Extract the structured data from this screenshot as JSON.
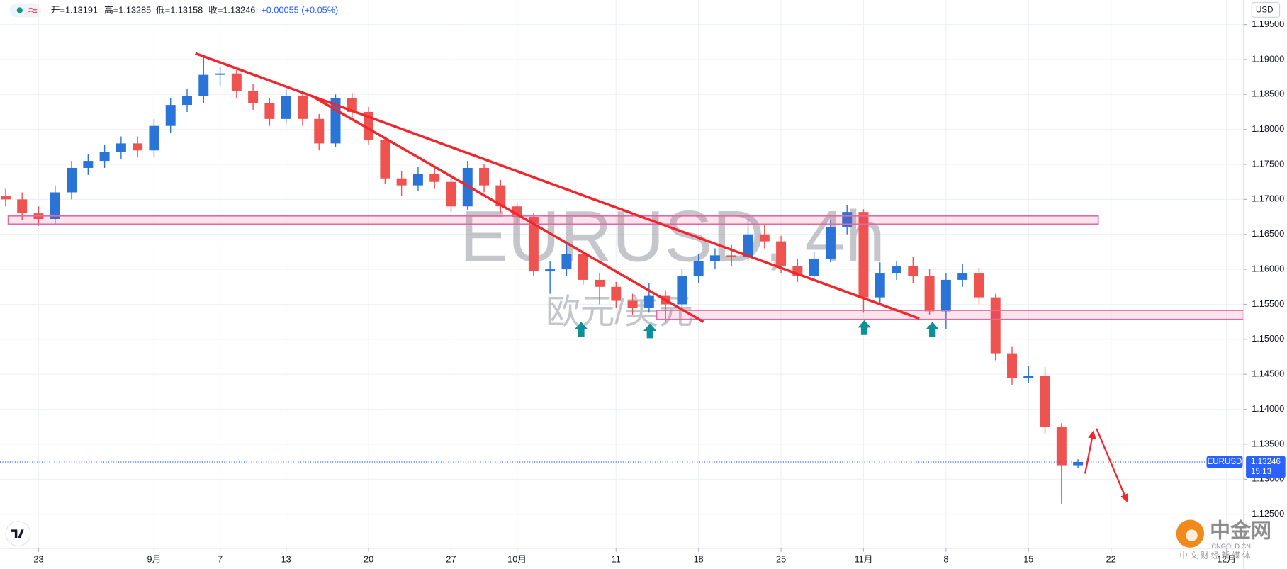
{
  "chart_data": {
    "type": "candlestick",
    "symbol_menu": "USD",
    "ohlc_legend": [
      "开=1.13191",
      "高=1.13285",
      "低=1.13158",
      "收=1.13246",
      "+0.00055 (+0.05%)"
    ],
    "watermark": [
      "EURUSD, 4h",
      "欧元/美元"
    ],
    "logo": {
      "name": "中金网",
      "domain": "CNGOLD.CN",
      "tagline": "中 文 财 经 新 媒 体"
    },
    "last_price": {
      "symbol": "EURUSD",
      "value": 1.13246,
      "countdown": "15:13"
    },
    "up_color": "#2a74d8",
    "down_color": "#ef5350",
    "grid": true,
    "xlim": [
      -2.34,
      73.03
    ],
    "xticks": [
      {
        "value": 0,
        "label": "23"
      },
      {
        "value": 7,
        "label": "9月"
      },
      {
        "value": 11,
        "label": "7"
      },
      {
        "value": 15,
        "label": "13"
      },
      {
        "value": 20,
        "label": "20"
      },
      {
        "value": 25,
        "label": "27"
      },
      {
        "value": 29,
        "label": "10月"
      },
      {
        "value": 35,
        "label": "11"
      },
      {
        "value": 40,
        "label": "18"
      },
      {
        "value": 45,
        "label": "25"
      },
      {
        "value": 50,
        "label": "11月"
      },
      {
        "value": 55,
        "label": "8"
      },
      {
        "value": 60,
        "label": "15"
      },
      {
        "value": 65,
        "label": "22"
      },
      {
        "value": 72,
        "label": "12月"
      }
    ],
    "ylim": [
      1.1201,
      1.1985
    ],
    "yticks": [
      {
        "value": 1.125,
        "label": "1.12500"
      },
      {
        "value": 1.13,
        "label": "1.13000"
      },
      {
        "value": 1.135,
        "label": "1.13500"
      },
      {
        "value": 1.14,
        "label": "1.14000"
      },
      {
        "value": 1.145,
        "label": "1.14500"
      },
      {
        "value": 1.15,
        "label": "1.15000"
      },
      {
        "value": 1.155,
        "label": "1.15500"
      },
      {
        "value": 1.16,
        "label": "1.16000"
      },
      {
        "value": 1.165,
        "label": "1.16500"
      },
      {
        "value": 1.17,
        "label": "1.17000"
      },
      {
        "value": 1.175,
        "label": "1.17500"
      },
      {
        "value": 1.18,
        "label": "1.18000"
      },
      {
        "value": 1.185,
        "label": "1.18500"
      },
      {
        "value": 1.19,
        "label": "1.19000"
      },
      {
        "value": 1.195,
        "label": "1.19500"
      }
    ],
    "x": [
      -2,
      -1,
      0,
      1,
      2,
      3,
      4,
      5,
      6,
      7,
      8,
      9,
      10,
      11,
      12,
      13,
      14,
      15,
      16,
      17,
      18,
      19,
      20,
      21,
      22,
      23,
      24,
      25,
      26,
      27,
      28,
      29,
      30,
      31,
      32,
      33,
      34,
      35,
      36,
      37,
      38,
      39,
      40,
      41,
      42,
      43,
      44,
      45,
      46,
      47,
      48,
      49,
      50,
      51,
      52,
      53,
      54,
      55,
      56,
      57,
      58,
      59,
      60,
      61,
      62,
      63
    ],
    "open": [
      1.1705,
      1.17,
      1.168,
      1.1672,
      1.171,
      1.1745,
      1.1755,
      1.1768,
      1.178,
      1.177,
      1.1805,
      1.1835,
      1.1848,
      1.1878,
      1.188,
      1.1855,
      1.1838,
      1.1815,
      1.1848,
      1.1815,
      1.178,
      1.1845,
      1.1825,
      1.1785,
      1.173,
      1.172,
      1.1736,
      1.1725,
      1.169,
      1.1745,
      1.172,
      1.169,
      1.1675,
      1.1597,
      1.16,
      1.1622,
      1.1585,
      1.1575,
      1.1555,
      1.1545,
      1.1562,
      1.155,
      1.159,
      1.1612,
      1.162,
      1.1618,
      1.165,
      1.164,
      1.1605,
      1.159,
      1.1615,
      1.166,
      1.1682,
      1.156,
      1.1595,
      1.1605,
      1.159,
      1.154,
      1.1585,
      1.1595,
      1.156,
      1.148,
      1.1445,
      1.1448,
      1.1375,
      1.132
    ],
    "high": [
      1.1715,
      1.171,
      1.169,
      1.172,
      1.1755,
      1.1765,
      1.1778,
      1.179,
      1.179,
      1.1815,
      1.1845,
      1.1858,
      1.1905,
      1.189,
      1.1885,
      1.1865,
      1.1845,
      1.1858,
      1.1852,
      1.1822,
      1.185,
      1.1852,
      1.1832,
      1.179,
      1.174,
      1.1746,
      1.1745,
      1.1732,
      1.1755,
      1.175,
      1.1728,
      1.1695,
      1.168,
      1.1612,
      1.164,
      1.1628,
      1.1595,
      1.1582,
      1.1565,
      1.158,
      1.157,
      1.16,
      1.1622,
      1.163,
      1.1635,
      1.1672,
      1.1665,
      1.1648,
      1.1615,
      1.1625,
      1.167,
      1.1692,
      1.1686,
      1.161,
      1.1612,
      1.1618,
      1.16,
      1.1595,
      1.1608,
      1.1602,
      1.1565,
      1.149,
      1.1462,
      1.146,
      1.138,
      1.13285
    ],
    "low": [
      1.169,
      1.167,
      1.1662,
      1.1665,
      1.17,
      1.1735,
      1.1745,
      1.1758,
      1.176,
      1.176,
      1.1795,
      1.1825,
      1.1838,
      1.1862,
      1.1845,
      1.1828,
      1.1805,
      1.1808,
      1.1805,
      1.177,
      1.1775,
      1.1815,
      1.1778,
      1.1722,
      1.1705,
      1.1712,
      1.1715,
      1.1682,
      1.1685,
      1.171,
      1.168,
      1.1665,
      1.159,
      1.1565,
      1.159,
      1.1578,
      1.155,
      1.1545,
      1.1535,
      1.1538,
      1.1525,
      1.1545,
      1.158,
      1.16,
      1.1605,
      1.1612,
      1.163,
      1.1595,
      1.1582,
      1.1585,
      1.161,
      1.165,
      1.1538,
      1.1552,
      1.1585,
      1.158,
      1.1535,
      1.1515,
      1.1575,
      1.155,
      1.147,
      1.1435,
      1.1438,
      1.1365,
      1.1265,
      1.13158
    ],
    "close": [
      1.17,
      1.168,
      1.1672,
      1.171,
      1.1745,
      1.1755,
      1.1768,
      1.178,
      1.177,
      1.1805,
      1.1835,
      1.1848,
      1.1878,
      1.188,
      1.1855,
      1.1838,
      1.1815,
      1.1848,
      1.1815,
      1.178,
      1.1845,
      1.1825,
      1.1785,
      1.173,
      1.172,
      1.1736,
      1.1725,
      1.169,
      1.1745,
      1.172,
      1.169,
      1.1675,
      1.1597,
      1.16,
      1.1622,
      1.1585,
      1.1575,
      1.1555,
      1.1545,
      1.1562,
      1.155,
      1.159,
      1.1612,
      1.162,
      1.1618,
      1.165,
      1.164,
      1.1605,
      1.159,
      1.1615,
      1.166,
      1.1682,
      1.156,
      1.1595,
      1.1605,
      1.159,
      1.154,
      1.1585,
      1.1595,
      1.156,
      1.148,
      1.1445,
      1.1448,
      1.1375,
      1.132,
      1.13246
    ]
  }
}
